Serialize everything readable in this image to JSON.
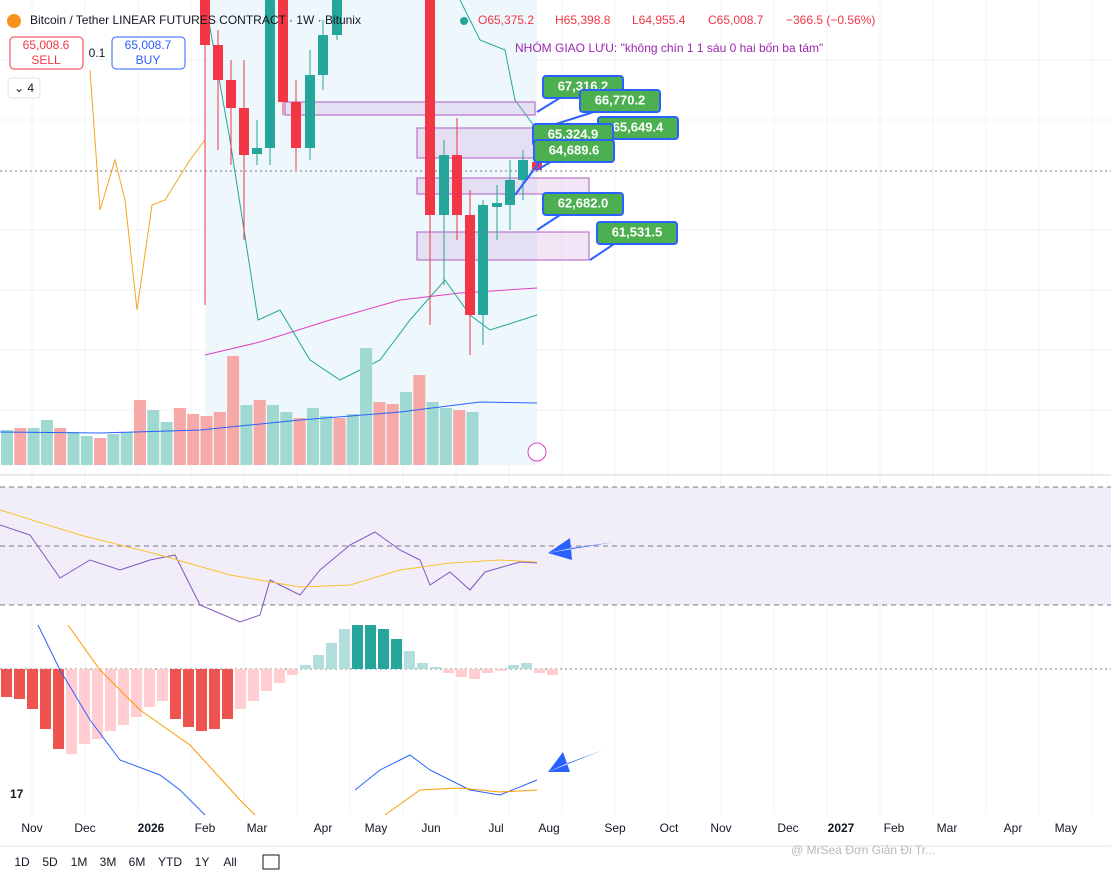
{
  "header": {
    "symbol": "Bitcoin / Tether LINEAR FUTURES CONTRACT · 1W · Bitunix",
    "open": "O65,375.2",
    "high": "H65,398.8",
    "low": "L64,955.4",
    "close": "C65,008.7",
    "change": "−366.5 (−0.56%)"
  },
  "trade": {
    "sell_price": "65,008.6",
    "sell": "SELL",
    "qty": "0.1",
    "buy_price": "65,008.7",
    "buy": "BUY",
    "indicators": "4"
  },
  "annotation": "NHÓM GIAO LƯU: \"không chín 1 1 sáu 0 hai bốn ba tám\"",
  "price_labels": [
    "67,316.2",
    "66,770.2",
    "65,649.4",
    "65,324.9",
    "64,689.6",
    "62,682.0",
    "61,531.5"
  ],
  "x_axis": [
    "Nov",
    "Dec",
    "2026",
    "Feb",
    "Mar",
    "Apr",
    "May",
    "Jun",
    "Jul",
    "Aug",
    "Sep",
    "Oct",
    "Nov",
    "Dec",
    "2027",
    "Feb",
    "Mar",
    "Apr",
    "May"
  ],
  "ranges": [
    "1D",
    "5D",
    "1M",
    "3M",
    "6M",
    "YTD",
    "1Y",
    "All"
  ],
  "watermark": "@ MrSea Đơn Giản Đi Tr..."
}
